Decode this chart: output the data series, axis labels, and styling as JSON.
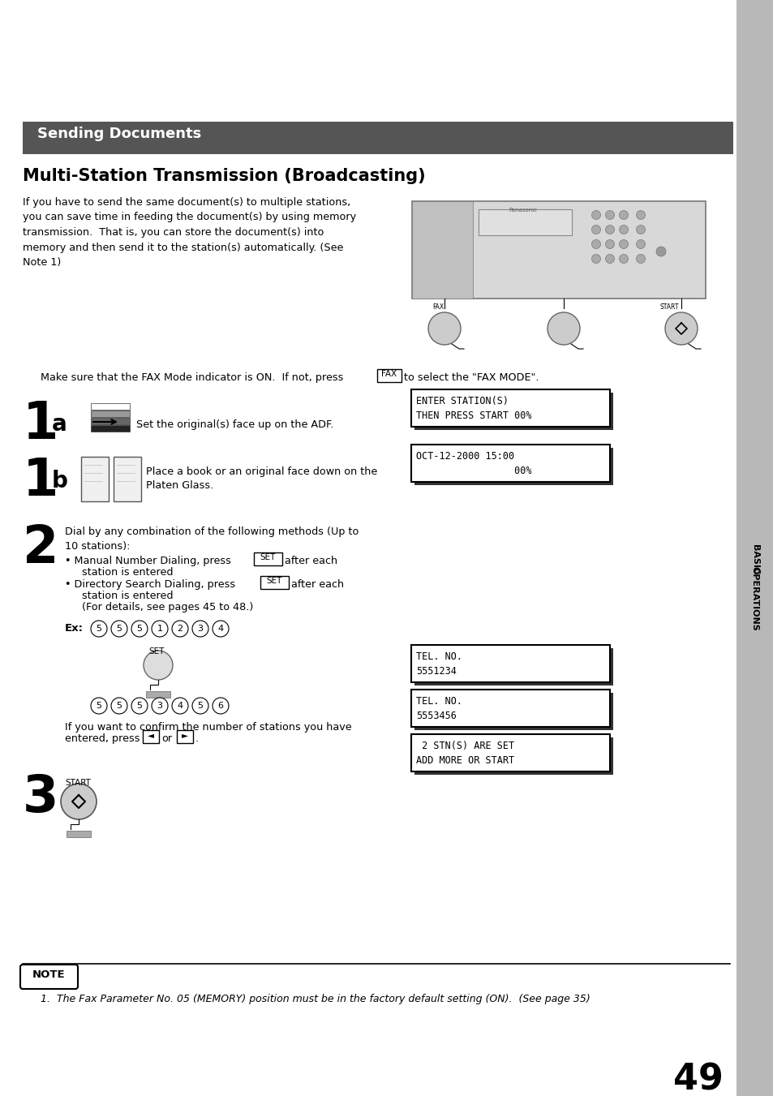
{
  "page_bg": "#ffffff",
  "sidebar_color": "#b8b8b8",
  "header_bg": "#555555",
  "header_text": "Sending Documents",
  "header_text_color": "#ffffff",
  "title": "Multi-Station Transmission (Broadcasting)",
  "body_text": "If you have to send the same document(s) to multiple stations,\nyou can save time in feeding the document(s) by using memory\ntransmission.  That is, you can store the document(s) into\nmemory and then send it to the station(s) automatically. (See\nNote 1)",
  "fax_mode_pre": "Make sure that the FAX Mode indicator is ON.  If not, press",
  "fax_mode_post": "to select the \"FAX MODE\".",
  "step1a_text": "Set the original(s) face up on the ADF.",
  "step1b_text": "Place a book or an original face down on the\nPlaten Glass.",
  "step2_text": "Dial by any combination of the following methods (Up to\n10 stations):",
  "bullet1_pre": "Manual Number Dialing, press",
  "bullet1_post": "after each",
  "bullet1_cont": "  station is entered",
  "bullet2_pre": "Directory Search Dialing, press",
  "bullet2_post": "after each",
  "bullet2_cont": "  station is entered",
  "bullet2_end": "  (For details, see pages 45 to 48.)",
  "ex_label": "Ex:",
  "ex_digits1": [
    "5",
    "5",
    "5",
    "1",
    "2",
    "3",
    "4"
  ],
  "ex_digits2": [
    "5",
    "5",
    "5",
    "3",
    "4",
    "5",
    "6"
  ],
  "confirm1": "If you want to confirm the number of stations you have",
  "confirm2": "entered, press",
  "confirm3": "or",
  "lcd1": [
    "ENTER STATION(S)",
    "THEN PRESS START 00%"
  ],
  "lcd2": [
    "OCT-12-2000 15:00",
    "                 00%"
  ],
  "lcd3": [
    "TEL. NO.",
    "5551234"
  ],
  "lcd4": [
    "TEL. NO.",
    "5553456"
  ],
  "lcd5": [
    " 2 STN(S) ARE SET",
    "ADD MORE OR START"
  ],
  "note_text": "1.  The Fax Parameter No. 05 (MEMORY) position must be in the factory default setting (ON).  (See page 35)",
  "page_number": "49",
  "sidebar_top": "BASIC",
  "sidebar_bot": "OPERATIONS"
}
